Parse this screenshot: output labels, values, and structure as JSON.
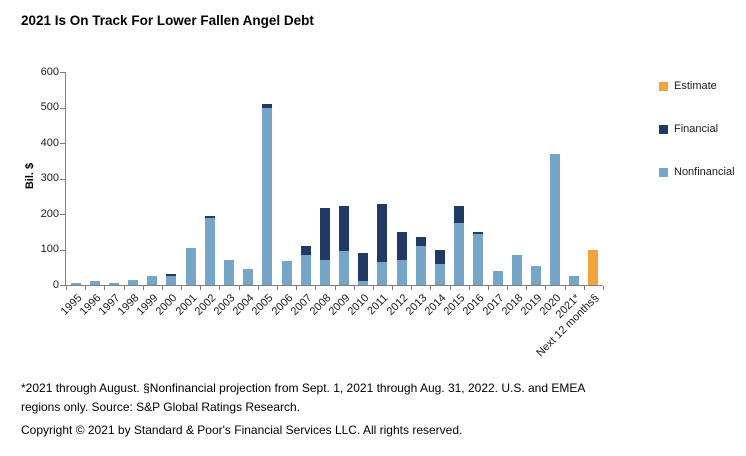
{
  "chart_data": {
    "type": "bar",
    "stacked": true,
    "title": "2021 Is On Track For Lower Fallen Angel Debt",
    "ylabel": "Bil. $",
    "ylim": [
      0,
      600
    ],
    "yticks": [
      0,
      100,
      200,
      300,
      400,
      500,
      600
    ],
    "grid": false,
    "legend_position": "right",
    "categories": [
      "1995",
      "1996",
      "1997",
      "1998",
      "1999",
      "2000",
      "2001",
      "2002",
      "2003",
      "2004",
      "2005",
      "2006",
      "2007",
      "2008",
      "2009",
      "2010",
      "2011",
      "2012",
      "2013",
      "2014",
      "2015",
      "2016",
      "2017",
      "2018",
      "2019",
      "2020",
      "2021*",
      "Next 12 months§"
    ],
    "series": [
      {
        "name": "Nonfinancial",
        "color": "#76a5c8",
        "values": [
          5,
          10,
          7,
          13,
          25,
          25,
          105,
          190,
          70,
          45,
          500,
          68,
          85,
          70,
          95,
          10,
          65,
          70,
          110,
          60,
          175,
          145,
          40,
          85,
          54,
          368,
          24,
          0
        ]
      },
      {
        "name": "Financial",
        "color": "#203a63",
        "values": [
          0,
          0,
          0,
          0,
          0,
          5,
          0,
          5,
          0,
          0,
          10,
          0,
          25,
          147,
          127,
          80,
          163,
          79,
          25,
          40,
          47,
          5,
          0,
          0,
          0,
          0,
          0,
          0
        ]
      },
      {
        "name": "Estimate",
        "color": "#f2a43c",
        "values": [
          0,
          0,
          0,
          0,
          0,
          0,
          0,
          0,
          0,
          0,
          0,
          0,
          0,
          0,
          0,
          0,
          0,
          0,
          0,
          0,
          0,
          0,
          0,
          0,
          0,
          0,
          0,
          100
        ]
      }
    ],
    "legend": [
      {
        "label": "Estimate",
        "color": "#f2a43c"
      },
      {
        "label": "Financial",
        "color": "#203a63"
      },
      {
        "label": "Nonfinancial",
        "color": "#76a5c8"
      }
    ]
  },
  "footnotes": {
    "note": "*2021 through August. §Nonfinancial projection from Sept. 1, 2021 through Aug. 31, 2022. U.S. and EMEA regions only. Source: S&P Global Ratings Research.",
    "copyright": "Copyright © 2021 by Standard & Poor's Financial Services LLC. All rights reserved."
  }
}
